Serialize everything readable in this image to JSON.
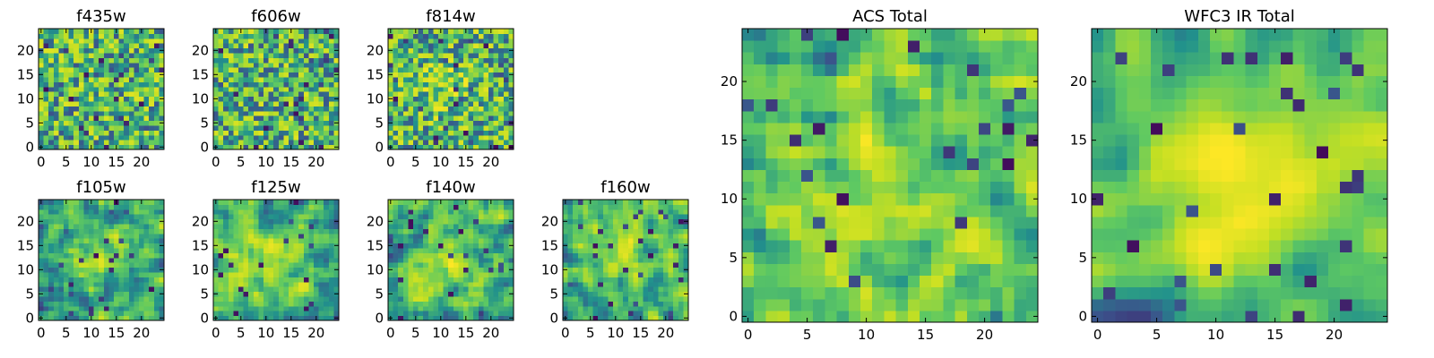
{
  "chart_data": [
    {
      "type": "heatmap",
      "title": "f435w",
      "xticks": [
        "0",
        "5",
        "10",
        "15",
        "20"
      ],
      "yticks": [
        "0",
        "5",
        "10",
        "15",
        "20"
      ],
      "xlim": [
        0,
        25
      ],
      "ylim": [
        0,
        25
      ],
      "grid": false
    },
    {
      "type": "heatmap",
      "title": "f606w",
      "xticks": [
        "0",
        "5",
        "10",
        "15",
        "20"
      ],
      "yticks": [
        "0",
        "5",
        "10",
        "15",
        "20"
      ],
      "xlim": [
        0,
        25
      ],
      "ylim": [
        0,
        25
      ],
      "grid": false
    },
    {
      "type": "heatmap",
      "title": "f814w",
      "xticks": [
        "0",
        "5",
        "10",
        "15",
        "20"
      ],
      "yticks": [
        "0",
        "5",
        "10",
        "15",
        "20"
      ],
      "xlim": [
        0,
        25
      ],
      "ylim": [
        0,
        25
      ],
      "grid": false
    },
    {
      "type": "heatmap",
      "title": "f105w",
      "xticks": [
        "0",
        "5",
        "10",
        "15",
        "20"
      ],
      "yticks": [
        "0",
        "5",
        "10",
        "15",
        "20"
      ],
      "xlim": [
        0,
        25
      ],
      "ylim": [
        0,
        25
      ],
      "grid": false
    },
    {
      "type": "heatmap",
      "title": "f125w",
      "xticks": [
        "0",
        "5",
        "10",
        "15",
        "20"
      ],
      "yticks": [
        "0",
        "5",
        "10",
        "15",
        "20"
      ],
      "xlim": [
        0,
        25
      ],
      "ylim": [
        0,
        25
      ],
      "grid": false
    },
    {
      "type": "heatmap",
      "title": "f140w",
      "xticks": [
        "0",
        "5",
        "10",
        "15",
        "20"
      ],
      "yticks": [
        "0",
        "5",
        "10",
        "15",
        "20"
      ],
      "xlim": [
        0,
        25
      ],
      "ylim": [
        0,
        25
      ],
      "grid": false
    },
    {
      "type": "heatmap",
      "title": "f160w",
      "xticks": [
        "0",
        "5",
        "10",
        "15",
        "20"
      ],
      "yticks": [
        "0",
        "5",
        "10",
        "15",
        "20"
      ],
      "xlim": [
        0,
        25
      ],
      "ylim": [
        0,
        25
      ],
      "grid": false
    },
    {
      "type": "heatmap",
      "title": "ACS Total",
      "xticks": [
        "0",
        "5",
        "10",
        "15",
        "20"
      ],
      "yticks": [
        "0",
        "5",
        "10",
        "15",
        "20"
      ],
      "xlim": [
        0,
        25
      ],
      "ylim": [
        0,
        25
      ],
      "grid": false
    },
    {
      "type": "heatmap",
      "title": "WFC3 IR Total",
      "xticks": [
        "0",
        "5",
        "10",
        "15",
        "20"
      ],
      "yticks": [
        "0",
        "5",
        "10",
        "15",
        "20"
      ],
      "xlim": [
        0,
        25
      ],
      "ylim": [
        0,
        25
      ],
      "grid": false
    }
  ],
  "colormap": [
    "#440154",
    "#3b528b",
    "#21918c",
    "#5ec962",
    "#c2df23",
    "#fde725"
  ]
}
